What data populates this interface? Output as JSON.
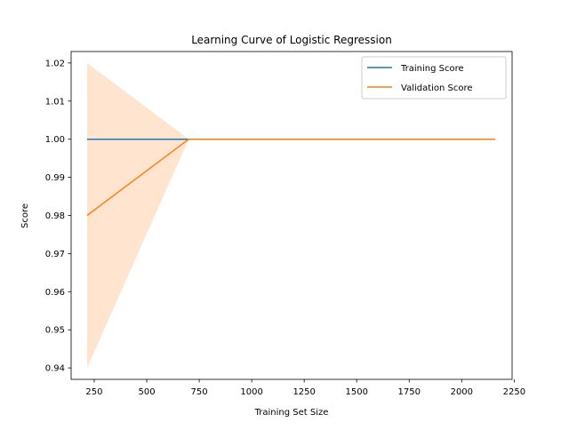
{
  "chart_data": {
    "type": "line",
    "title": "Learning Curve of Logistic Regression",
    "xlabel": "Training Set Size",
    "ylabel": "Score",
    "xlim": [
      140,
      2240
    ],
    "ylim": [
      0.937,
      1.023
    ],
    "xticks": [
      250,
      500,
      750,
      1000,
      1250,
      1500,
      1750,
      2000,
      2250
    ],
    "yticks": [
      0.94,
      0.95,
      0.96,
      0.97,
      0.98,
      0.99,
      1.0,
      1.01,
      1.02
    ],
    "ytick_labels": [
      "0.94",
      "0.95",
      "0.96",
      "0.97",
      "0.98",
      "0.99",
      "1.00",
      "1.01",
      "1.02"
    ],
    "grid": false,
    "legend_position": "upper right",
    "x": [
      216,
      700,
      2160
    ],
    "series": [
      {
        "name": "Training Score",
        "color": "#1f77b4",
        "values": [
          1.0,
          1.0,
          1.0
        ],
        "band_lower": [
          1.0,
          1.0,
          1.0
        ],
        "band_upper": [
          1.0,
          1.0,
          1.0
        ]
      },
      {
        "name": "Validation Score",
        "color": "#ff7f0e",
        "values": [
          0.98,
          1.0,
          1.0
        ],
        "band_lower": [
          0.94,
          1.0,
          1.0
        ],
        "band_upper": [
          1.02,
          1.0,
          1.0
        ]
      }
    ]
  }
}
